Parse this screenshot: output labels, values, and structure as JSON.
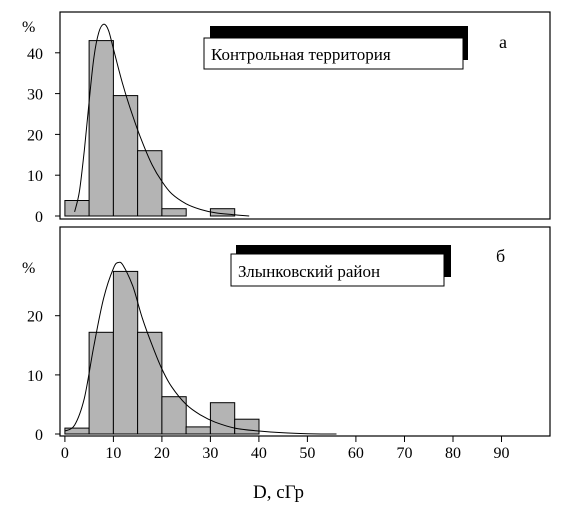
{
  "chart_data": [
    {
      "type": "bar",
      "panel_letter": "а",
      "legend_label": "Контрольная территория",
      "ylabel": "%",
      "ylim": [
        0,
        50
      ],
      "yticks": [
        0,
        10,
        20,
        30,
        40
      ],
      "xlim": [
        -1,
        100
      ],
      "bin_width": 5,
      "bins": [
        0,
        5,
        10,
        15,
        20,
        25,
        30
      ],
      "values": [
        3.8,
        43,
        29.5,
        16,
        1.8,
        0,
        1.8
      ],
      "fit_curve": [
        [
          2,
          1
        ],
        [
          3,
          6
        ],
        [
          4,
          16
        ],
        [
          5,
          28
        ],
        [
          6,
          39
        ],
        [
          7,
          45
        ],
        [
          8,
          47
        ],
        [
          9,
          45.5
        ],
        [
          10,
          41
        ],
        [
          12,
          32
        ],
        [
          14,
          24.5
        ],
        [
          16,
          18
        ],
        [
          18,
          12.5
        ],
        [
          20,
          8.5
        ],
        [
          22,
          5.5
        ],
        [
          25,
          3
        ],
        [
          28,
          1.6
        ],
        [
          31,
          0.8
        ],
        [
          35,
          0.3
        ],
        [
          38,
          0
        ]
      ]
    },
    {
      "type": "bar",
      "panel_letter": "б",
      "legend_label": "Злынковский район",
      "ylabel": "%",
      "ylim": [
        0,
        35
      ],
      "yticks": [
        0,
        10,
        20
      ],
      "xlim": [
        -1,
        100
      ],
      "bin_width": 5,
      "bins": [
        0,
        5,
        10,
        15,
        20,
        25,
        30,
        35
      ],
      "values": [
        1,
        17.2,
        27.5,
        17.2,
        6.3,
        1.2,
        5.3,
        2.5
      ],
      "fit_curve": [
        [
          0,
          0.5
        ],
        [
          2,
          1.5
        ],
        [
          4,
          6
        ],
        [
          6,
          15
        ],
        [
          8,
          23
        ],
        [
          10,
          28
        ],
        [
          11,
          29
        ],
        [
          12,
          28.5
        ],
        [
          14,
          25
        ],
        [
          16,
          19.5
        ],
        [
          18,
          15
        ],
        [
          20,
          11
        ],
        [
          22,
          8
        ],
        [
          25,
          5
        ],
        [
          28,
          3.2
        ],
        [
          31,
          2
        ],
        [
          35,
          1
        ],
        [
          40,
          0.5
        ],
        [
          45,
          0.2
        ],
        [
          50,
          0.05
        ],
        [
          56,
          0
        ]
      ]
    }
  ],
  "x_axis": {
    "label": "D, сГр",
    "ticks": [
      0,
      10,
      20,
      30,
      40,
      50,
      60,
      70,
      80,
      90
    ]
  },
  "colors": {
    "bar_fill": "#b4b4b4",
    "stroke": "#000000",
    "legend_shadow": "#000000"
  }
}
